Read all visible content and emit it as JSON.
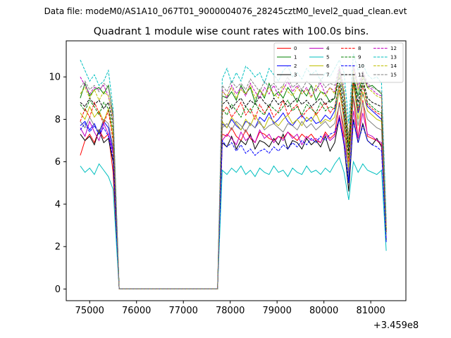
{
  "supertitle": "Data file: modeM0/AS1A10_067T01_9000004076_28245cztM0_level2_quad_clean.evt",
  "chart_data": {
    "type": "line",
    "title": "Quadrant 1 module wise count rates with 100.0s bins.",
    "xlabel": "",
    "ylabel": "",
    "x_offset_label": "+3.459e8",
    "xlim": [
      74500,
      81750
    ],
    "ylim": [
      -0.55,
      11.7
    ],
    "xticks": [
      75000,
      76000,
      77000,
      78000,
      79000,
      80000,
      81000
    ],
    "xtick_labels": [
      "75000",
      "76000",
      "77000",
      "78000",
      "79000",
      "80000",
      "81000"
    ],
    "yticks": [
      0,
      2,
      4,
      6,
      8,
      10
    ],
    "ytick_labels": [
      "0",
      "2",
      "4",
      "6",
      "8",
      "10"
    ],
    "legend_position": "upper right",
    "legend_columns": 4,
    "x_segments": [
      {
        "start": 74800,
        "step": 100,
        "count": 8
      },
      {
        "start": 75630,
        "step": 100,
        "count": 22
      },
      {
        "start": 77830,
        "step": 100,
        "count": 36
      }
    ],
    "series": [
      {
        "name": "0",
        "color": "#ff0000",
        "dash": "solid",
        "seg1": [
          6.3,
          7.0,
          7.3,
          6.9,
          7.5,
          7.1,
          7.3,
          5.5
        ],
        "seg3": [
          7.3,
          7.2,
          7.6,
          7.2,
          7.0,
          7.5,
          7.1,
          6.9,
          7.4,
          7.3,
          7.1,
          7.0,
          7.2,
          7.1,
          7.4,
          7.2,
          7.0,
          7.3,
          7.1,
          7.3,
          7.0,
          6.9,
          7.4,
          7.1,
          7.3,
          8.8,
          7.2,
          6.9,
          9.0,
          7.1,
          8.9,
          7.2,
          7.1,
          7.0,
          6.8,
          2.5
        ]
      },
      {
        "name": "1",
        "color": "#008000",
        "dash": "solid",
        "seg1": [
          9.0,
          9.7,
          9.1,
          9.4,
          9.5,
          9.2,
          9.6,
          8.2
        ],
        "seg3": [
          9.1,
          9.0,
          9.3,
          8.9,
          9.6,
          9.2,
          9.5,
          8.8,
          9.4,
          9.0,
          9.7,
          9.1,
          9.3,
          9.0,
          9.5,
          9.2,
          8.8,
          9.4,
          9.1,
          9.6,
          8.9,
          9.3,
          9.2,
          8.8,
          9.0,
          10.3,
          9.1,
          6.8,
          10.0,
          9.1,
          10.1,
          9.5,
          9.6,
          9.4,
          9.2,
          2.7
        ]
      },
      {
        "name": "2",
        "color": "#0000ff",
        "dash": "solid",
        "seg1": [
          7.7,
          7.9,
          7.5,
          7.8,
          7.3,
          7.9,
          7.6,
          6.5
        ],
        "seg3": [
          7.8,
          7.6,
          8.0,
          7.7,
          7.5,
          7.9,
          7.8,
          7.6,
          8.1,
          7.9,
          8.3,
          7.8,
          8.0,
          8.3,
          7.9,
          7.7,
          8.0,
          8.2,
          7.9,
          8.1,
          7.8,
          7.9,
          8.2,
          8.0,
          8.4,
          9.3,
          8.1,
          5.0,
          9.9,
          8.3,
          9.2,
          8.6,
          8.4,
          8.2,
          8.0,
          2.4
        ]
      },
      {
        "name": "3",
        "color": "#000000",
        "dash": "solid",
        "seg1": [
          7.3,
          7.0,
          7.2,
          6.8,
          7.5,
          6.9,
          7.1,
          6.0
        ],
        "seg3": [
          6.9,
          6.7,
          7.2,
          6.6,
          7.0,
          6.8,
          7.3,
          6.6,
          7.0,
          6.9,
          6.7,
          7.1,
          6.8,
          7.3,
          6.6,
          7.0,
          6.9,
          6.6,
          7.1,
          6.8,
          7.0,
          6.7,
          7.2,
          6.5,
          6.9,
          8.1,
          6.8,
          4.6,
          8.0,
          6.9,
          7.8,
          7.0,
          6.8,
          7.1,
          6.7,
          2.3
        ]
      },
      {
        "name": "4",
        "color": "#bf00bf",
        "dash": "solid",
        "seg1": [
          7.6,
          7.2,
          7.9,
          7.4,
          7.0,
          7.8,
          7.3,
          6.4
        ],
        "seg3": [
          7.0,
          7.3,
          7.1,
          6.8,
          7.4,
          7.0,
          7.2,
          6.9,
          7.5,
          7.1,
          7.3,
          6.9,
          7.2,
          7.0,
          7.4,
          7.1,
          7.3,
          6.8,
          7.2,
          7.0,
          7.1,
          6.9,
          7.3,
          7.0,
          7.2,
          8.2,
          7.0,
          5.5,
          8.4,
          7.1,
          8.3,
          7.3,
          7.2,
          7.0,
          6.9,
          2.4
        ]
      },
      {
        "name": "5",
        "color": "#00bfbf",
        "dash": "solid",
        "seg1": [
          5.8,
          5.5,
          5.7,
          5.4,
          5.9,
          5.6,
          5.3,
          4.7
        ],
        "seg3": [
          5.6,
          5.4,
          5.7,
          5.5,
          5.8,
          5.4,
          5.6,
          5.3,
          5.7,
          5.5,
          5.4,
          5.8,
          5.5,
          5.6,
          5.3,
          5.7,
          5.5,
          5.4,
          5.8,
          5.5,
          5.6,
          5.4,
          5.7,
          5.5,
          5.9,
          6.2,
          5.5,
          4.2,
          6.0,
          5.5,
          5.9,
          5.6,
          5.5,
          5.4,
          5.6,
          1.8
        ]
      },
      {
        "name": "6",
        "color": "#bfbf00",
        "dash": "solid",
        "seg1": [
          8.3,
          8.0,
          8.6,
          8.1,
          8.4,
          7.9,
          8.5,
          7.2
        ],
        "seg3": [
          7.9,
          7.6,
          8.1,
          7.8,
          7.5,
          8.0,
          7.7,
          8.2,
          7.8,
          7.6,
          8.1,
          7.9,
          7.7,
          8.0,
          8.2,
          7.8,
          8.0,
          7.7,
          8.1,
          7.9,
          8.3,
          7.8,
          8.0,
          7.9,
          8.1,
          9.4,
          7.9,
          5.7,
          9.7,
          8.0,
          9.3,
          8.4,
          8.2,
          8.0,
          7.9,
          2.6
        ]
      },
      {
        "name": "7",
        "color": "#808080",
        "dash": "solid",
        "seg1": [
          7.9,
          7.6,
          8.1,
          7.7,
          7.4,
          8.0,
          7.8,
          6.7
        ],
        "seg3": [
          7.6,
          7.8,
          7.5,
          7.9,
          7.7,
          7.4,
          7.8,
          7.6,
          7.9,
          7.5,
          7.7,
          7.8,
          7.6,
          7.4,
          7.8,
          7.7,
          7.5,
          7.9,
          7.6,
          7.8,
          7.5,
          7.7,
          7.9,
          7.6,
          7.8,
          8.7,
          7.6,
          5.3,
          9.1,
          7.7,
          8.8,
          8.0,
          7.8,
          7.6,
          7.5,
          2.5
        ]
      },
      {
        "name": "8",
        "color": "#ff0000",
        "dash": "dashed",
        "seg1": [
          7.9,
          8.5,
          8.1,
          8.8,
          8.3,
          7.8,
          8.4,
          7.0
        ],
        "seg3": [
          8.3,
          8.6,
          8.1,
          8.4,
          8.8,
          8.2,
          8.5,
          8.0,
          8.7,
          8.3,
          8.6,
          8.1,
          8.4,
          8.9,
          8.2,
          8.5,
          8.7,
          8.1,
          8.4,
          8.6,
          8.2,
          8.5,
          8.8,
          8.3,
          8.6,
          9.6,
          8.2,
          6.0,
          9.8,
          8.4,
          9.6,
          8.7,
          8.5,
          8.3,
          8.2,
          2.7
        ]
      },
      {
        "name": "9",
        "color": "#008000",
        "dash": "dashed",
        "seg1": [
          8.7,
          8.4,
          8.9,
          8.6,
          8.2,
          8.8,
          8.5,
          7.5
        ],
        "seg3": [
          8.5,
          8.2,
          8.7,
          8.4,
          8.1,
          8.6,
          8.3,
          8.8,
          8.4,
          8.2,
          8.7,
          8.5,
          8.3,
          8.6,
          8.9,
          8.4,
          8.6,
          8.2,
          8.7,
          8.5,
          8.3,
          8.8,
          8.4,
          8.6,
          8.5,
          9.7,
          8.4,
          6.2,
          9.9,
          8.5,
          9.7,
          8.8,
          8.6,
          8.4,
          8.3,
          2.7
        ]
      },
      {
        "name": "10",
        "color": "#0000ff",
        "dash": "dashed",
        "seg1": [
          7.5,
          7.8,
          7.4,
          7.7,
          7.3,
          7.6,
          7.2,
          6.2
        ],
        "seg3": [
          7.0,
          6.7,
          6.9,
          6.5,
          6.8,
          6.4,
          6.6,
          6.3,
          6.5,
          6.6,
          6.4,
          6.7,
          6.5,
          6.8,
          6.6,
          6.9,
          6.7,
          7.0,
          6.8,
          7.1,
          6.9,
          7.2,
          7.0,
          7.3,
          7.4,
          8.0,
          6.8,
          5.0,
          7.9,
          6.9,
          7.7,
          7.0,
          6.8,
          6.7,
          6.5,
          2.2
        ]
      },
      {
        "name": "11",
        "color": "#000000",
        "dash": "dashed",
        "seg1": [
          8.8,
          8.6,
          9.0,
          8.7,
          8.9,
          8.5,
          8.8,
          7.8
        ],
        "seg3": [
          8.7,
          8.9,
          8.5,
          8.8,
          9.0,
          8.6,
          8.9,
          8.7,
          9.1,
          8.8,
          8.6,
          9.0,
          8.7,
          8.9,
          8.6,
          8.8,
          9.0,
          8.7,
          8.9,
          8.6,
          8.8,
          9.0,
          8.7,
          8.9,
          9.0,
          10.0,
          8.7,
          6.5,
          10.1,
          8.8,
          9.9,
          9.0,
          8.8,
          8.7,
          8.6,
          2.8
        ]
      },
      {
        "name": "12",
        "color": "#bf00bf",
        "dash": "dashed",
        "seg1": [
          10.0,
          9.6,
          9.2,
          9.5,
          9.4,
          9.6,
          9.1,
          8.1
        ],
        "seg3": [
          9.4,
          9.0,
          9.6,
          9.2,
          9.5,
          9.1,
          9.7,
          9.3,
          9.0,
          9.5,
          9.2,
          9.6,
          9.1,
          9.4,
          9.8,
          9.3,
          9.6,
          9.2,
          9.5,
          9.1,
          9.4,
          9.7,
          9.2,
          9.5,
          9.3,
          10.4,
          9.2,
          7.0,
          10.5,
          9.4,
          10.2,
          9.6,
          9.4,
          9.2,
          9.1,
          3.0
        ]
      },
      {
        "name": "13",
        "color": "#00bfbf",
        "dash": "dashed",
        "seg1": [
          10.8,
          10.3,
          9.8,
          10.1,
          9.6,
          9.8,
          10.3,
          8.5
        ],
        "seg3": [
          9.9,
          10.4,
          9.7,
          10.2,
          9.8,
          10.5,
          10.3,
          10.0,
          10.2,
          9.7,
          10.4,
          10.1,
          9.8,
          10.3,
          10.5,
          10.0,
          10.2,
          9.9,
          10.4,
          10.1,
          10.3,
          9.8,
          10.2,
          10.0,
          10.4,
          10.8,
          10.2,
          7.8,
          11.1,
          10.3,
          10.6,
          10.1,
          9.9,
          10.0,
          9.7,
          3.3
        ]
      },
      {
        "name": "14",
        "color": "#bfbf00",
        "dash": "dashed",
        "seg1": [
          9.2,
          9.5,
          9.0,
          9.4,
          8.9,
          9.3,
          9.1,
          8.0
        ],
        "seg3": [
          9.3,
          9.1,
          9.5,
          9.0,
          9.4,
          9.2,
          9.6,
          9.0,
          9.4,
          9.1,
          9.5,
          9.2,
          9.0,
          9.6,
          9.3,
          9.1,
          9.5,
          9.2,
          9.4,
          9.0,
          9.6,
          9.3,
          9.1,
          9.5,
          9.2,
          10.1,
          9.3,
          6.9,
          10.3,
          9.4,
          10.0,
          9.5,
          9.3,
          9.1,
          9.0,
          2.9
        ]
      },
      {
        "name": "15",
        "color": "#808080",
        "dash": "dashed",
        "seg1": [
          9.5,
          9.8,
          9.4,
          9.6,
          9.3,
          9.7,
          9.5,
          8.3
        ],
        "seg3": [
          9.6,
          9.3,
          9.8,
          9.5,
          9.7,
          9.4,
          9.9,
          9.6,
          9.3,
          9.8,
          9.5,
          9.7,
          9.4,
          9.6,
          10.0,
          9.5,
          9.7,
          9.4,
          9.8,
          9.6,
          9.3,
          9.9,
          9.5,
          9.7,
          9.6,
          10.5,
          9.5,
          7.2,
          10.6,
          9.6,
          10.3,
          9.7,
          9.5,
          9.4,
          9.3,
          3.1
        ]
      }
    ]
  }
}
